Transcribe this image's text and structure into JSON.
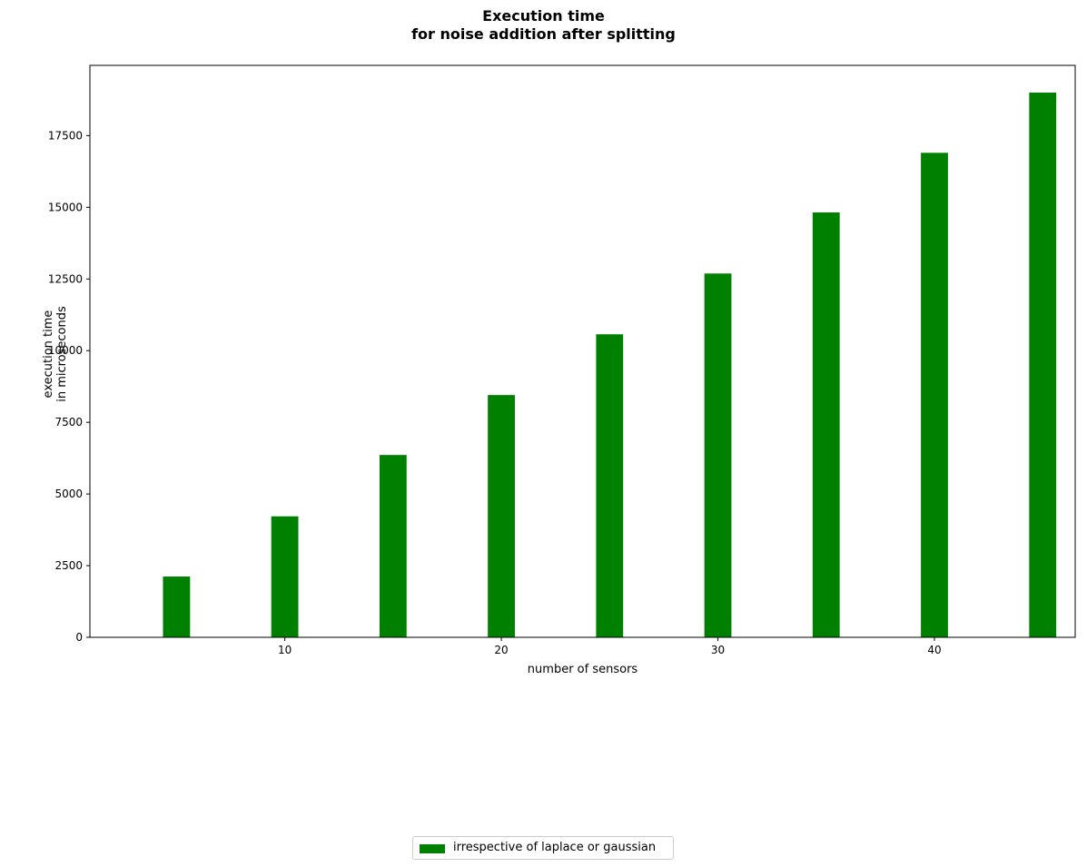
{
  "chart_data": {
    "type": "bar",
    "title_lines": [
      "Execution time",
      "for noise addition after splitting"
    ],
    "xlabel": "number of sensors",
    "ylabel_lines": [
      "execution time",
      "in microseconds"
    ],
    "x": [
      5,
      10,
      15,
      20,
      25,
      30,
      35,
      40,
      45
    ],
    "series": [
      {
        "name": "irrespective of laplace or gaussian",
        "values": [
          2120,
          4220,
          6360,
          8450,
          10570,
          12690,
          14820,
          16900,
          19000
        ],
        "color": "#008000"
      }
    ],
    "bar_width": 1.25,
    "xlim": [
      1.0,
      46.5
    ],
    "ylim": [
      0,
      19950
    ],
    "xticks": [
      10,
      20,
      30,
      40
    ],
    "yticks": [
      0,
      2500,
      5000,
      7500,
      10000,
      12500,
      15000,
      17500
    ],
    "grid": false,
    "legend_position": "bottom-center"
  }
}
